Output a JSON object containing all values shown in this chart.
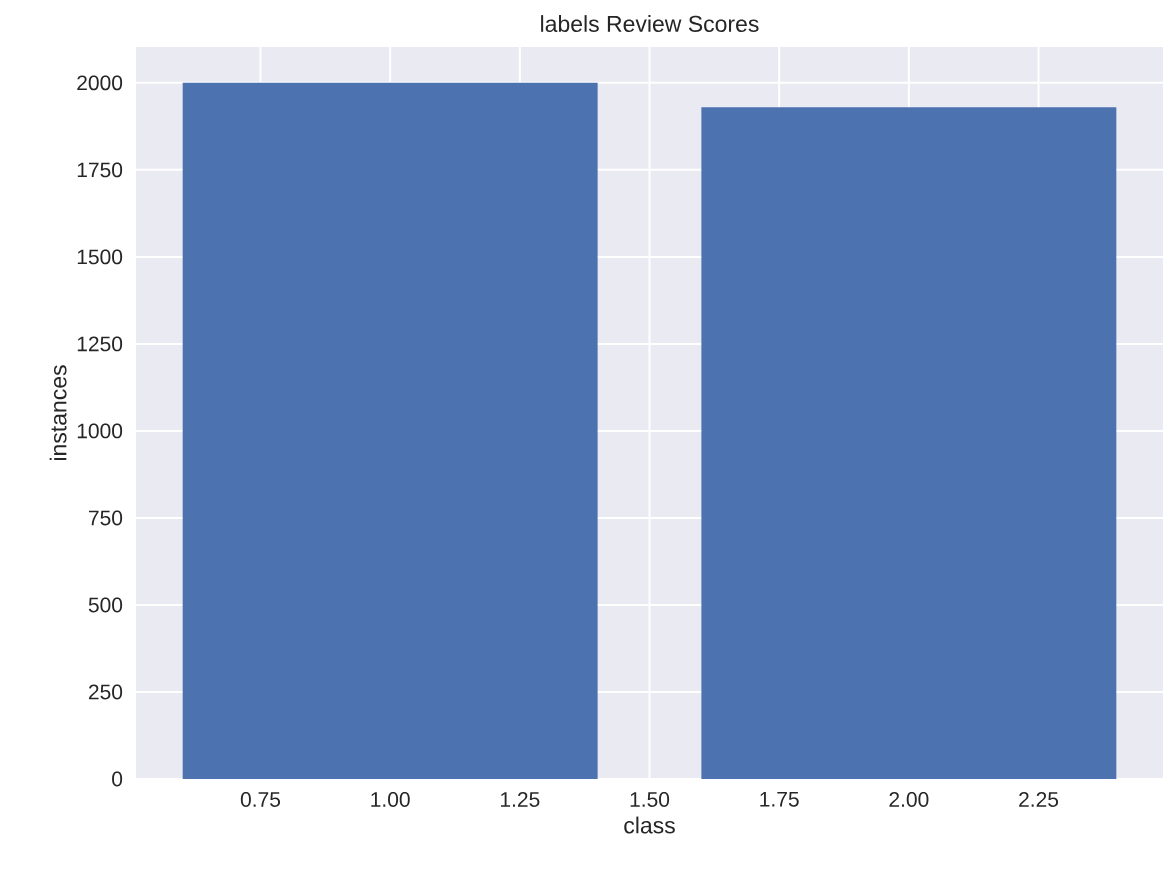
{
  "chart_data": {
    "type": "bar",
    "title": "labels Review Scores",
    "xlabel": "class",
    "ylabel": "instances",
    "x": [
      1,
      2
    ],
    "values": [
      2000,
      1930
    ],
    "color": "#4c72b0",
    "xlim": [
      0.51,
      2.49
    ],
    "ylim": [
      0,
      2103
    ],
    "xticks": [
      {
        "value": 0.75,
        "label": "0.75"
      },
      {
        "value": 1.0,
        "label": "1.00"
      },
      {
        "value": 1.25,
        "label": "1.25"
      },
      {
        "value": 1.5,
        "label": "1.50"
      },
      {
        "value": 1.75,
        "label": "1.75"
      },
      {
        "value": 2.0,
        "label": "2.00"
      },
      {
        "value": 2.25,
        "label": "2.25"
      }
    ],
    "yticks": [
      0,
      250,
      500,
      750,
      1000,
      1250,
      1500,
      1750,
      2000
    ],
    "grid": true
  }
}
